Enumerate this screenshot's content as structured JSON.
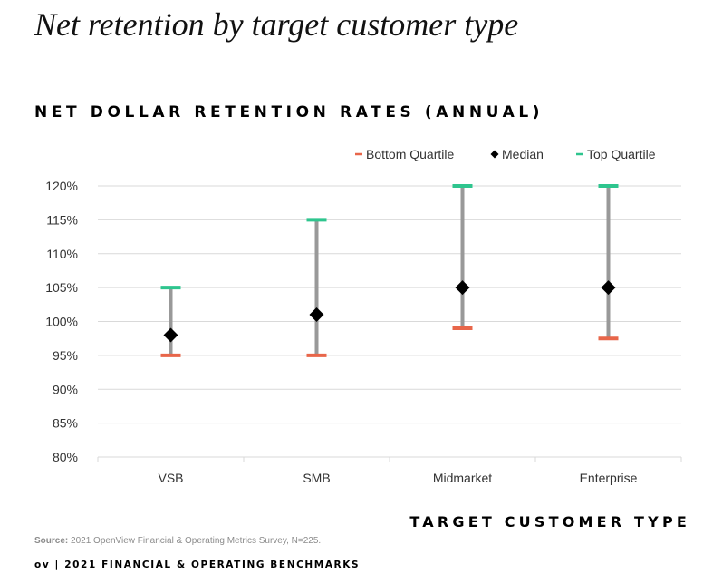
{
  "page": {
    "title": "Net retention by target customer type"
  },
  "source": {
    "label": "Source:",
    "text": "2021 OpenView Financial & Operating Metrics Survey, N=225."
  },
  "footer": {
    "logo": "ov",
    "separator": "|",
    "text": "2021 FINANCIAL & OPERATING BENCHMARKS"
  },
  "colors": {
    "bottom": "#e8664a",
    "median": "#000000",
    "top": "#2ec58e",
    "range_line": "#999999",
    "grid": "#d9d9d9"
  },
  "chart_data": {
    "type": "scatter",
    "subtype": "range-marker",
    "title": "NET DOLLAR RETENTION RATES (ANNUAL)",
    "xlabel": "TARGET CUSTOMER TYPE",
    "ylabel": "",
    "categories": [
      "VSB",
      "SMB",
      "Midmarket",
      "Enterprise"
    ],
    "ylim": [
      80,
      120
    ],
    "yticks": [
      120,
      115,
      110,
      105,
      100,
      95,
      90,
      85,
      80
    ],
    "ytick_labels": [
      "120%",
      "115%",
      "110%",
      "105%",
      "100%",
      "95%",
      "90%",
      "85%",
      "80%"
    ],
    "grid": true,
    "legend_position": "top-right",
    "series": [
      {
        "name": "Bottom Quartile",
        "marker": "dash",
        "values": [
          95,
          95,
          99,
          97.5
        ]
      },
      {
        "name": "Median",
        "marker": "diamond",
        "values": [
          98,
          101,
          105,
          105
        ]
      },
      {
        "name": "Top Quartile",
        "marker": "dash",
        "values": [
          105,
          115,
          120,
          120
        ]
      }
    ]
  }
}
